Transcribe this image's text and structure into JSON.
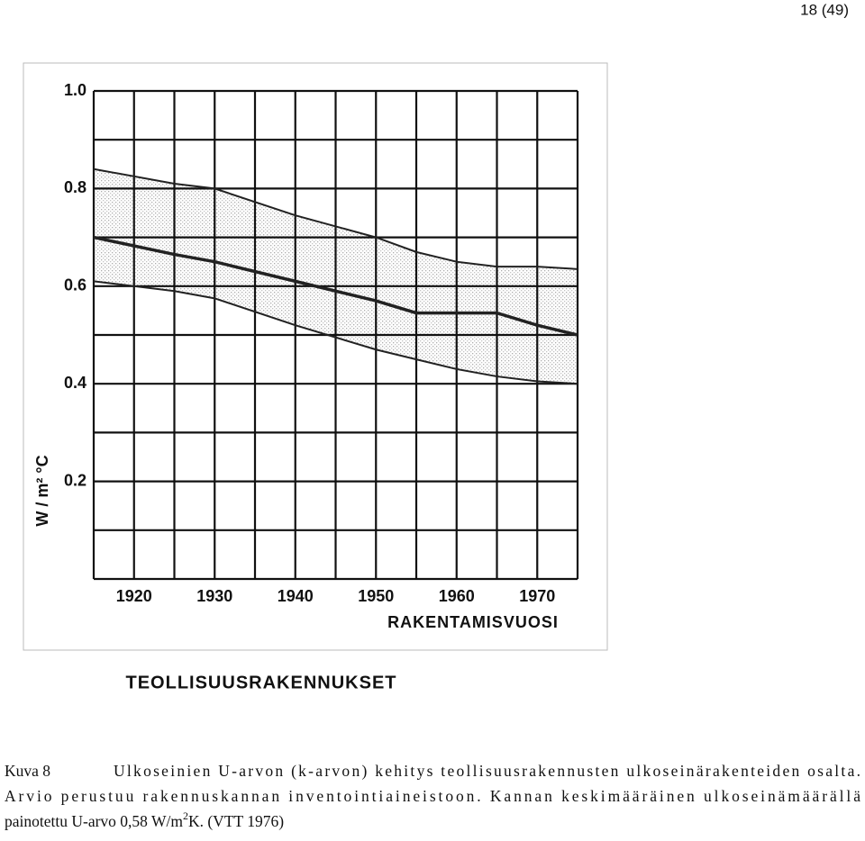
{
  "page_number": "18 (49)",
  "chart_data": {
    "type": "line",
    "title": "TEOLLISUUSRAKENNUKSET",
    "x_label": "RAKENTAMISVUOSI",
    "y_label": "W / m² °C",
    "x": [
      1915,
      1925,
      1930,
      1940,
      1950,
      1955,
      1960,
      1965,
      1970,
      1975
    ],
    "series": [
      {
        "color": "#222",
        "values": [
          0.84,
          0.81,
          0.8,
          0.745,
          0.7,
          0.67,
          0.65,
          0.64,
          0.64,
          0.635
        ]
      },
      {
        "color": "#222",
        "values": [
          0.7,
          0.665,
          0.65,
          0.61,
          0.57,
          0.545,
          0.545,
          0.545,
          0.52,
          0.5
        ]
      },
      {
        "color": "#222",
        "values": [
          0.61,
          0.59,
          0.575,
          0.52,
          0.47,
          0.45,
          0.43,
          0.415,
          0.405,
          0.4
        ]
      }
    ],
    "fill_between": [
      0,
      2
    ],
    "xlim": [
      1915,
      1975
    ],
    "xticks": [
      1920,
      1930,
      1940,
      1950,
      1960,
      1970
    ],
    "x_gridlines": [
      1915,
      1920,
      1925,
      1930,
      1935,
      1940,
      1945,
      1950,
      1955,
      1960,
      1965,
      1970,
      1975
    ],
    "ylim": [
      0,
      1
    ],
    "yticks": [
      0.2,
      0.4,
      0.6,
      0.8,
      {
        "value": 1,
        "label": "1.0"
      }
    ],
    "y_gridlines": [
      0,
      0.1,
      0.2,
      0.3,
      0.4,
      0.5,
      0.6,
      0.7,
      0.8,
      0.9,
      1
    ],
    "grid": true
  },
  "caption": {
    "label": "Kuva 8",
    "line1": "Ulkoseinien U-arvon (k-arvon) kehitys teollisuusrakennusten ulkoseinärakenteiden osalta.",
    "line2": "Arvio perustuu rakennuskannan inventointiaineistoon. Kannan keskimääräinen ulkoseinämäärällä",
    "line3": [
      "painotettu U-arvo 0,58 W/m",
      "2",
      "K. (VTT 1976)"
    ]
  }
}
